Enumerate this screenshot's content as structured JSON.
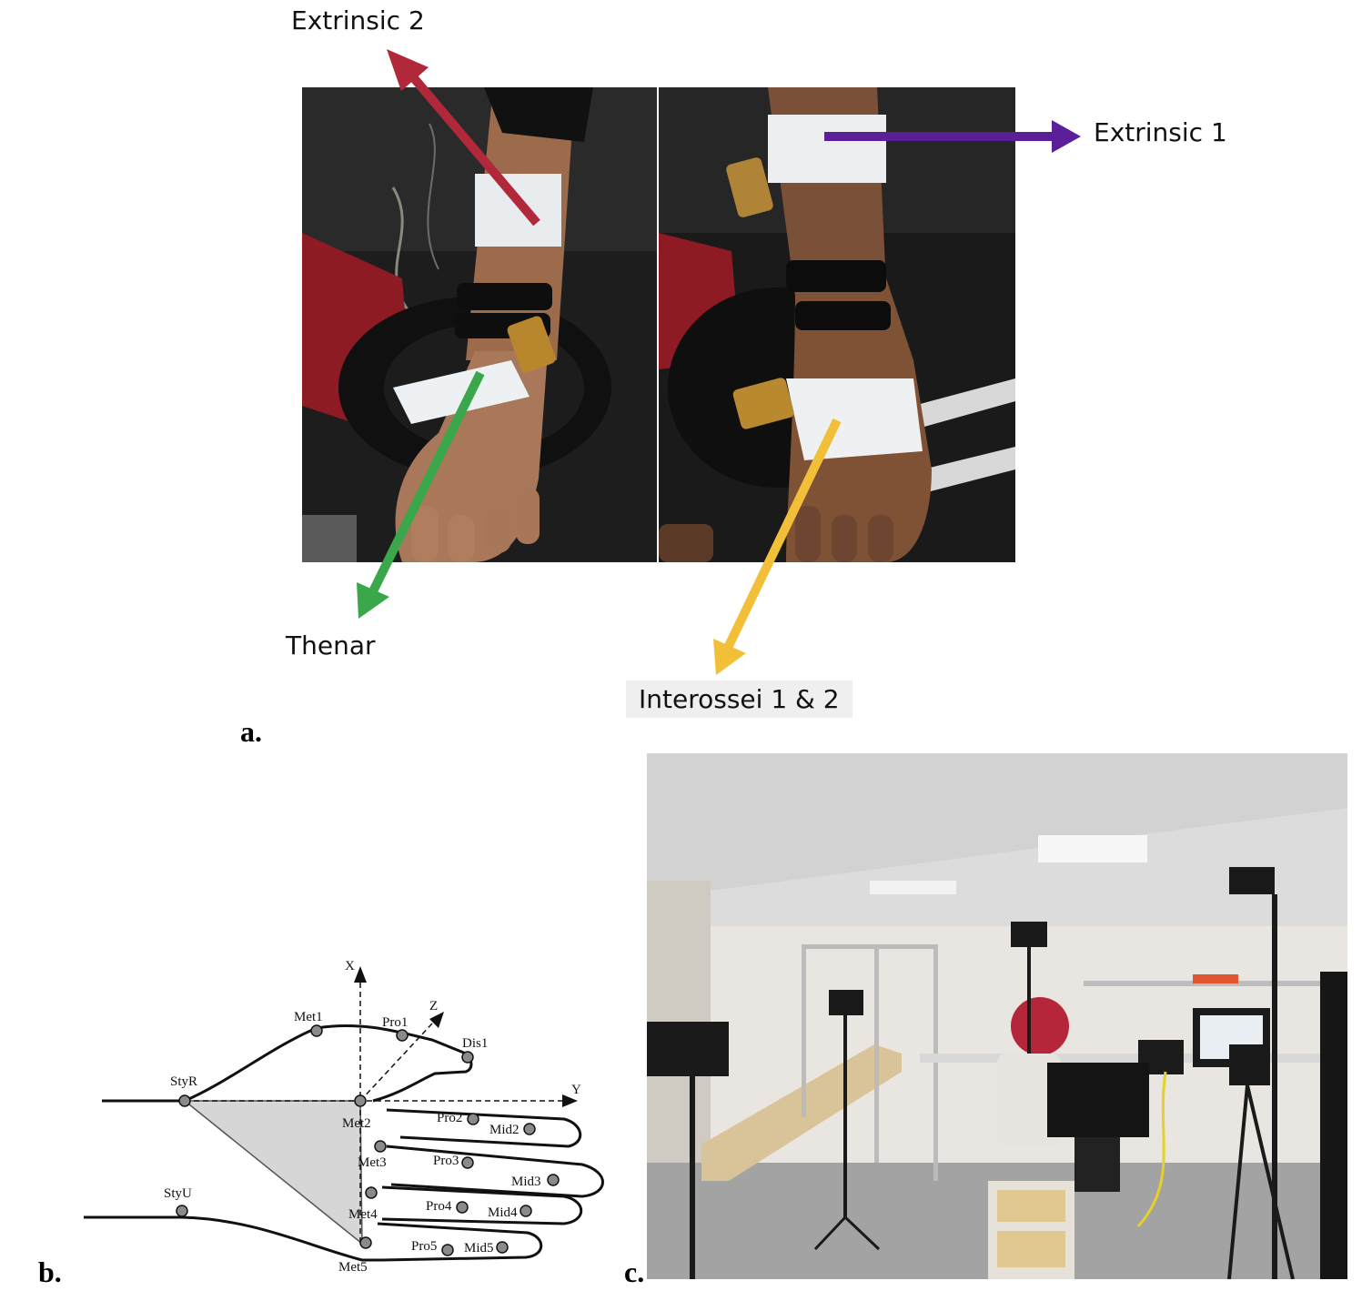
{
  "panel_a": {
    "letter": "a.",
    "labels": {
      "extrinsic2": "Extrinsic 2",
      "extrinsic1": "Extrinsic 1",
      "thenar": "Thenar",
      "interossei": "Interossei 1 & 2"
    },
    "arrow_colors": {
      "extrinsic2": "#b0283a",
      "extrinsic1": "#5b1f9a",
      "thenar": "#3aa84a",
      "interossei": "#f2bf38"
    }
  },
  "panel_b": {
    "letter": "b.",
    "axes": {
      "x": "X",
      "y": "Y",
      "z": "Z"
    },
    "markers": {
      "met1": "Met1",
      "pro1": "Pro1",
      "dis1": "Dis1",
      "styr": "StyR",
      "styu": "StyU",
      "met2": "Met2",
      "met3": "Met3",
      "met4": "Met4",
      "met5": "Met5",
      "pro2": "Pro2",
      "mid2": "Mid2",
      "pro3": "Pro3",
      "mid3": "Mid3",
      "pro4": "Pro4",
      "mid4": "Mid4",
      "pro5": "Pro5",
      "mid5": "Mid5"
    }
  },
  "panel_c": {
    "letter": "c."
  }
}
